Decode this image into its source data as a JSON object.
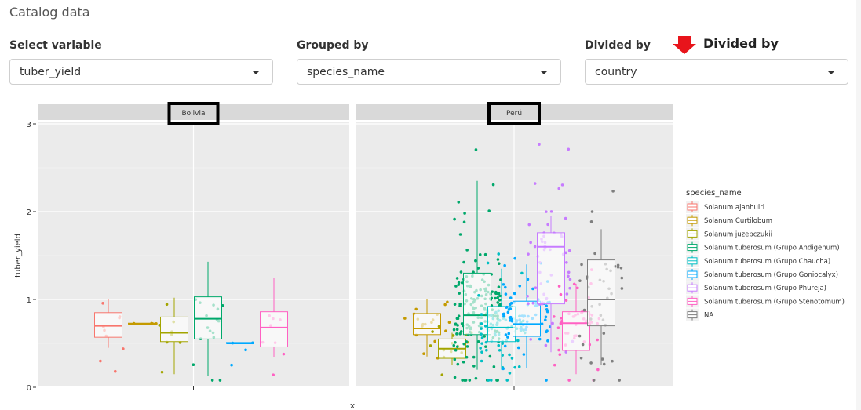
{
  "panel": {
    "title": "Catalog data"
  },
  "controls": {
    "variable": {
      "label": "Select variable",
      "value": "tuber_yield"
    },
    "grouped": {
      "label": "Grouped by",
      "value": "species_name"
    },
    "divided": {
      "label": "Divided by",
      "value": "country"
    }
  },
  "annotation": {
    "text": "Divided by",
    "arrow_color": "#e8141b"
  },
  "chart_data": {
    "type": "boxplot",
    "xlabel": "x",
    "ylabel": "tuber_yield",
    "ylim": [
      0,
      3
    ],
    "yticks": [
      0,
      1,
      2,
      3
    ],
    "facets": [
      "Bolivia",
      "Perú"
    ],
    "legend": {
      "title": "species_name",
      "placement": "right",
      "entries": [
        {
          "name": "Solanum ajanhuiri",
          "color": "#F8766D"
        },
        {
          "name": "Solanum Curtilobum",
          "color": "#C49A00"
        },
        {
          "name": "Solanum juzepczukii",
          "color": "#A3A500"
        },
        {
          "name": "Solanum tuberosum (Grupo Andigenum)",
          "color": "#00A86B"
        },
        {
          "name": "Solanum tuberosum (Grupo Chaucha)",
          "color": "#00BFC4"
        },
        {
          "name": "Solanum tuberosum (Grupo Goniocalyx)",
          "color": "#00A9FF"
        },
        {
          "name": "Solanum tuberosum (Grupo Phureja)",
          "color": "#C77CFF"
        },
        {
          "name": "Solanum tuberosum (Grupo Stenotomum)",
          "color": "#FF61C3"
        },
        {
          "name": "NA",
          "color": "#7F7F7F"
        }
      ]
    },
    "boxes": [
      {
        "facet": "Bolivia",
        "group": "Solanum ajanhuiri",
        "q1": 0.57,
        "median": 0.7,
        "q3": 0.85,
        "whisker_low": 0.45,
        "whisker_high": 1.0
      },
      {
        "facet": "Bolivia",
        "group": "Solanum Curtilobum",
        "q1": 0.72,
        "median": 0.72,
        "q3": 0.73,
        "whisker_low": 0.72,
        "whisker_high": 0.73
      },
      {
        "facet": "Bolivia",
        "group": "Solanum juzepczukii",
        "q1": 0.52,
        "median": 0.62,
        "q3": 0.8,
        "whisker_low": 0.15,
        "whisker_high": 1.02
      },
      {
        "facet": "Bolivia",
        "group": "Solanum tuberosum (Grupo Andigenum)",
        "q1": 0.55,
        "median": 0.78,
        "q3": 1.03,
        "whisker_low": 0.13,
        "whisker_high": 1.43
      },
      {
        "facet": "Bolivia",
        "group": "Solanum tuberosum (Grupo Goniocalyx)",
        "q1": 0.5,
        "median": 0.5,
        "q3": 0.51,
        "whisker_low": 0.5,
        "whisker_high": 0.51
      },
      {
        "facet": "Bolivia",
        "group": "Solanum tuberosum (Grupo Stenotomum)",
        "q1": 0.46,
        "median": 0.68,
        "q3": 0.86,
        "whisker_low": 0.34,
        "whisker_high": 1.25
      },
      {
        "facet": "Perú",
        "group": "Solanum Curtilobum",
        "q1": 0.6,
        "median": 0.67,
        "q3": 0.84,
        "whisker_low": 0.35,
        "whisker_high": 1.0
      },
      {
        "facet": "Perú",
        "group": "Solanum juzepczukii",
        "q1": 0.33,
        "median": 0.44,
        "q3": 0.55,
        "whisker_low": 0.25,
        "whisker_high": 0.62
      },
      {
        "facet": "Perú",
        "group": "Solanum tuberosum (Grupo Andigenum)",
        "q1": 0.6,
        "median": 0.82,
        "q3": 1.3,
        "whisker_low": 0.2,
        "whisker_high": 2.35
      },
      {
        "facet": "Perú",
        "group": "Solanum tuberosum (Grupo Chaucha)",
        "q1": 0.52,
        "median": 0.68,
        "q3": 0.92,
        "whisker_low": 0.2,
        "whisker_high": 1.35
      },
      {
        "facet": "Perú",
        "group": "Solanum tuberosum (Grupo Goniocalyx)",
        "q1": 0.58,
        "median": 0.72,
        "q3": 0.98,
        "whisker_low": 0.22,
        "whisker_high": 1.4
      },
      {
        "facet": "Perú",
        "group": "Solanum tuberosum (Grupo Phureja)",
        "q1": 0.95,
        "median": 1.6,
        "q3": 1.76,
        "whisker_low": 0.4,
        "whisker_high": 1.95
      },
      {
        "facet": "Perú",
        "group": "Solanum tuberosum (Grupo Stenotomum)",
        "q1": 0.42,
        "median": 0.73,
        "q3": 0.86,
        "whisker_low": 0.15,
        "whisker_high": 1.18
      },
      {
        "facet": "Perú",
        "group": "NA",
        "q1": 0.7,
        "median": 1.0,
        "q3": 1.45,
        "whisker_low": 0.25,
        "whisker_high": 1.8
      }
    ]
  }
}
